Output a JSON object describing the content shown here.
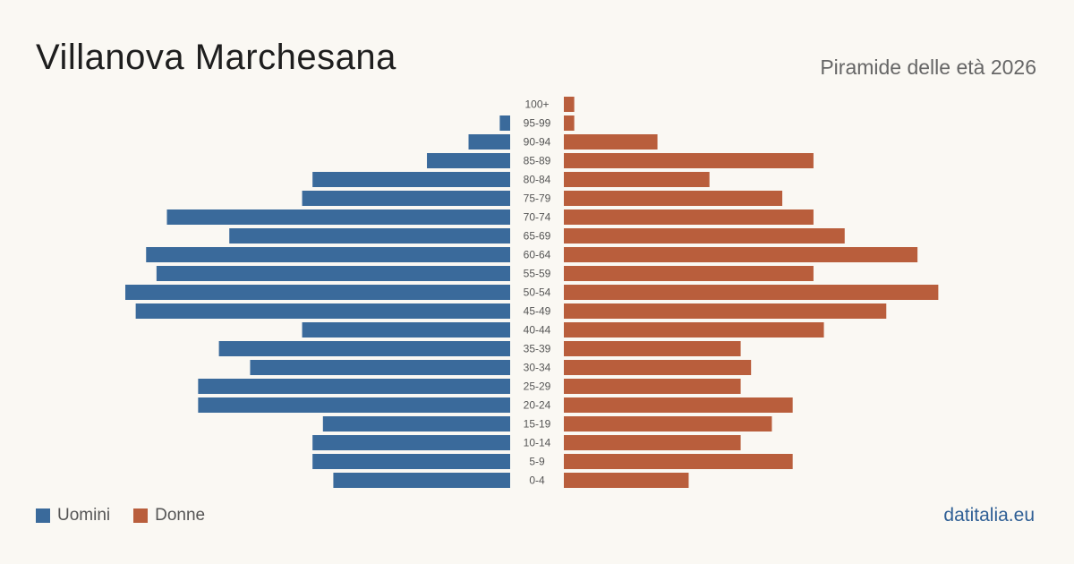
{
  "header": {
    "title": "Villanova Marchesana",
    "subtitle": "Piramide delle età 2026"
  },
  "legend": {
    "men_label": "Uomini",
    "women_label": "Donne"
  },
  "footer": {
    "source": "datitalia.eu"
  },
  "colors": {
    "men": "#3a6a9b",
    "women": "#b95e3c",
    "age_label": "#555555"
  },
  "chart_data": {
    "type": "bar",
    "orientation": "horizontal-pyramid",
    "categories": [
      "100+",
      "95-99",
      "90-94",
      "85-89",
      "80-84",
      "75-79",
      "70-74",
      "65-69",
      "60-64",
      "55-59",
      "50-54",
      "45-49",
      "40-44",
      "35-39",
      "30-34",
      "25-29",
      "20-24",
      "15-19",
      "10-14",
      "5-9",
      "0-4"
    ],
    "series": [
      {
        "name": "Uomini",
        "values": [
          0,
          1,
          4,
          8,
          19,
          20,
          33,
          27,
          35,
          34,
          37,
          36,
          20,
          28,
          25,
          30,
          30,
          18,
          19,
          19,
          17
        ]
      },
      {
        "name": "Donne",
        "values": [
          1,
          1,
          9,
          24,
          14,
          21,
          24,
          27,
          34,
          24,
          36,
          31,
          25,
          17,
          18,
          17,
          22,
          20,
          17,
          22,
          12
        ]
      }
    ],
    "xlim": [
      0,
      37
    ],
    "grid": false,
    "legend_position": "bottom-left"
  }
}
